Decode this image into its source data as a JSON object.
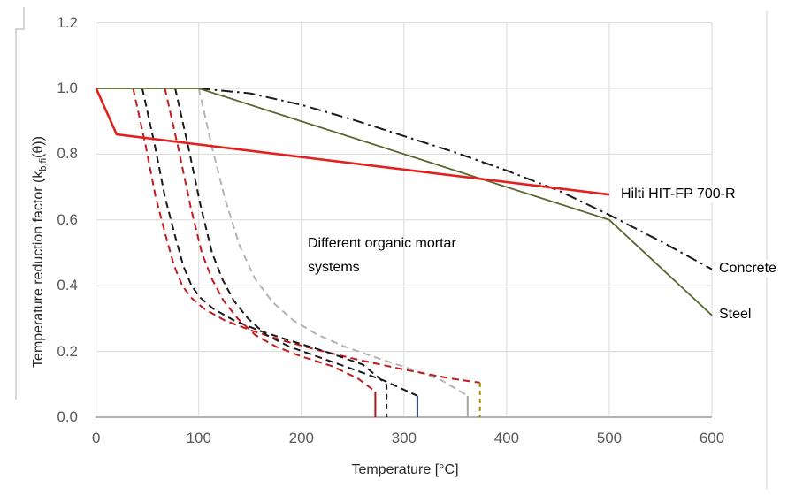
{
  "chart_data": {
    "type": "line",
    "title": "",
    "xlabel": "Temperature [°C]",
    "ylabel_prefix": "Temperature reduction factor (k",
    "ylabel_sub": "b,fi",
    "ylabel_suffix": "(θ))",
    "xlim": [
      0,
      600
    ],
    "ylim": [
      0,
      1.2
    ],
    "grid": true,
    "legend_position": "inline-labels-right",
    "x_ticks": [
      0,
      100,
      200,
      300,
      400,
      500,
      600
    ],
    "y_ticks": [
      "1.2",
      "1.0",
      "0.8",
      "0.6",
      "0.4",
      "0.2",
      "0.0"
    ],
    "px": {
      "x_at_0": 108.7,
      "x_at_600": 805,
      "y_at_0": 472,
      "y_at_1": 100
    },
    "colors": {
      "hilti_red": "#e3201d",
      "steel_green": "#55682d",
      "concrete_black": "#1a1a1a",
      "mortar_red": "#c31a1e",
      "mortar_black": "#1a1a1a",
      "mortar_gray": "#b3b3b3",
      "drop_dark_red": "#a21d1a",
      "drop_navy": "#1f3f6e",
      "drop_dark_yellow": "#a78a00",
      "grid": "#d9d9d9",
      "axis": "#b3b3b3",
      "tick_text": "#595959"
    },
    "annotations": {
      "hilti_label": "Hilti HIT-FP 700-R",
      "concrete_label": "Concrete",
      "steel_label": "Steel",
      "mortar_line1": "Different organic mortar",
      "mortar_line2": "systems"
    },
    "series": [
      {
        "name": "organic-mortar-gray",
        "color": "#b3b3b3",
        "width": 2,
        "dash": "8 5",
        "points": [
          [
            100,
            1.0
          ],
          [
            113,
            0.82
          ],
          [
            126,
            0.66
          ],
          [
            140,
            0.52
          ],
          [
            155,
            0.42
          ],
          [
            172,
            0.35
          ],
          [
            192,
            0.295
          ],
          [
            215,
            0.252
          ],
          [
            242,
            0.215
          ],
          [
            272,
            0.182
          ],
          [
            305,
            0.148
          ],
          [
            335,
            0.115
          ],
          [
            362,
            0.065
          ]
        ]
      },
      {
        "name": "organic-mortar-red-1",
        "color": "#c31a1e",
        "width": 2,
        "dash": "8 5",
        "points": [
          [
            36,
            1.0
          ],
          [
            48,
            0.83
          ],
          [
            58,
            0.67
          ],
          [
            68,
            0.55
          ],
          [
            76,
            0.46
          ],
          [
            84,
            0.4
          ],
          [
            92,
            0.365
          ],
          [
            105,
            0.33
          ],
          [
            125,
            0.295
          ],
          [
            150,
            0.265
          ],
          [
            180,
            0.235
          ],
          [
            215,
            0.205
          ],
          [
            255,
            0.175
          ],
          [
            300,
            0.145
          ],
          [
            345,
            0.118
          ],
          [
            374,
            0.105
          ]
        ]
      },
      {
        "name": "organic-mortar-black-1",
        "color": "#1a1a1a",
        "width": 2,
        "dash": "8 5",
        "points": [
          [
            45,
            1.0
          ],
          [
            57,
            0.83
          ],
          [
            67,
            0.67
          ],
          [
            77,
            0.55
          ],
          [
            85,
            0.46
          ],
          [
            93,
            0.4
          ],
          [
            101,
            0.365
          ],
          [
            114,
            0.33
          ],
          [
            134,
            0.295
          ],
          [
            160,
            0.262
          ],
          [
            190,
            0.232
          ],
          [
            225,
            0.198
          ],
          [
            260,
            0.16
          ],
          [
            283,
            0.1
          ]
        ]
      },
      {
        "name": "organic-mortar-red-2",
        "color": "#c31a1e",
        "width": 2,
        "dash": "8 5",
        "points": [
          [
            67,
            1.0
          ],
          [
            80,
            0.82
          ],
          [
            92,
            0.64
          ],
          [
            103,
            0.5
          ],
          [
            113,
            0.42
          ],
          [
            124,
            0.355
          ],
          [
            138,
            0.3
          ],
          [
            155,
            0.25
          ],
          [
            175,
            0.215
          ],
          [
            200,
            0.185
          ],
          [
            230,
            0.155
          ],
          [
            255,
            0.118
          ],
          [
            272,
            0.078
          ]
        ]
      },
      {
        "name": "organic-mortar-black-2",
        "color": "#1a1a1a",
        "width": 2,
        "dash": "8 5",
        "points": [
          [
            77,
            1.0
          ],
          [
            90,
            0.82
          ],
          [
            102,
            0.64
          ],
          [
            113,
            0.5
          ],
          [
            123,
            0.42
          ],
          [
            134,
            0.355
          ],
          [
            148,
            0.3
          ],
          [
            166,
            0.25
          ],
          [
            188,
            0.215
          ],
          [
            215,
            0.185
          ],
          [
            245,
            0.152
          ],
          [
            280,
            0.112
          ],
          [
            313,
            0.065
          ]
        ]
      },
      {
        "name": "mortar-end-drop-dark-red",
        "color": "#a21d1a",
        "width": 2,
        "dash": "",
        "points": [
          [
            272,
            0.078
          ],
          [
            272,
            0
          ]
        ]
      },
      {
        "name": "mortar-end-drop-black-dashed",
        "color": "#1a1a1a",
        "width": 2,
        "dash": "6 5",
        "points": [
          [
            283,
            0.1
          ],
          [
            283,
            0
          ]
        ]
      },
      {
        "name": "mortar-end-drop-navy",
        "color": "#1f3f6e",
        "width": 2,
        "dash": "",
        "points": [
          [
            313,
            0.065
          ],
          [
            313,
            0
          ]
        ]
      },
      {
        "name": "mortar-end-drop-gray",
        "color": "#a6a6a6",
        "width": 2,
        "dash": "",
        "points": [
          [
            362,
            0.065
          ],
          [
            362,
            0
          ]
        ]
      },
      {
        "name": "mortar-end-drop-dark-yellow",
        "color": "#a78a00",
        "width": 2,
        "dash": "5 4",
        "points": [
          [
            374,
            0.105
          ],
          [
            374,
            0
          ]
        ]
      },
      {
        "name": "concrete",
        "color": "#1a1a1a",
        "width": 2,
        "dash": "13 5 2.5 5",
        "points": [
          [
            100,
            1.0
          ],
          [
            150,
            0.985
          ],
          [
            200,
            0.95
          ],
          [
            250,
            0.905
          ],
          [
            300,
            0.855
          ],
          [
            350,
            0.805
          ],
          [
            400,
            0.75
          ],
          [
            450,
            0.69
          ],
          [
            500,
            0.615
          ],
          [
            550,
            0.535
          ],
          [
            600,
            0.45
          ]
        ]
      },
      {
        "name": "steel",
        "color": "#55682d",
        "width": 1.8,
        "dash": "",
        "points": [
          [
            0,
            1.0
          ],
          [
            100,
            1.0
          ],
          [
            500,
            0.6
          ],
          [
            600,
            0.31
          ]
        ]
      },
      {
        "name": "hilti-hit-fp-700-r",
        "color": "#e3201d",
        "width": 2.6,
        "dash": "",
        "points": [
          [
            0,
            1.0
          ],
          [
            20,
            0.86
          ],
          [
            500,
            0.677
          ]
        ]
      }
    ]
  }
}
